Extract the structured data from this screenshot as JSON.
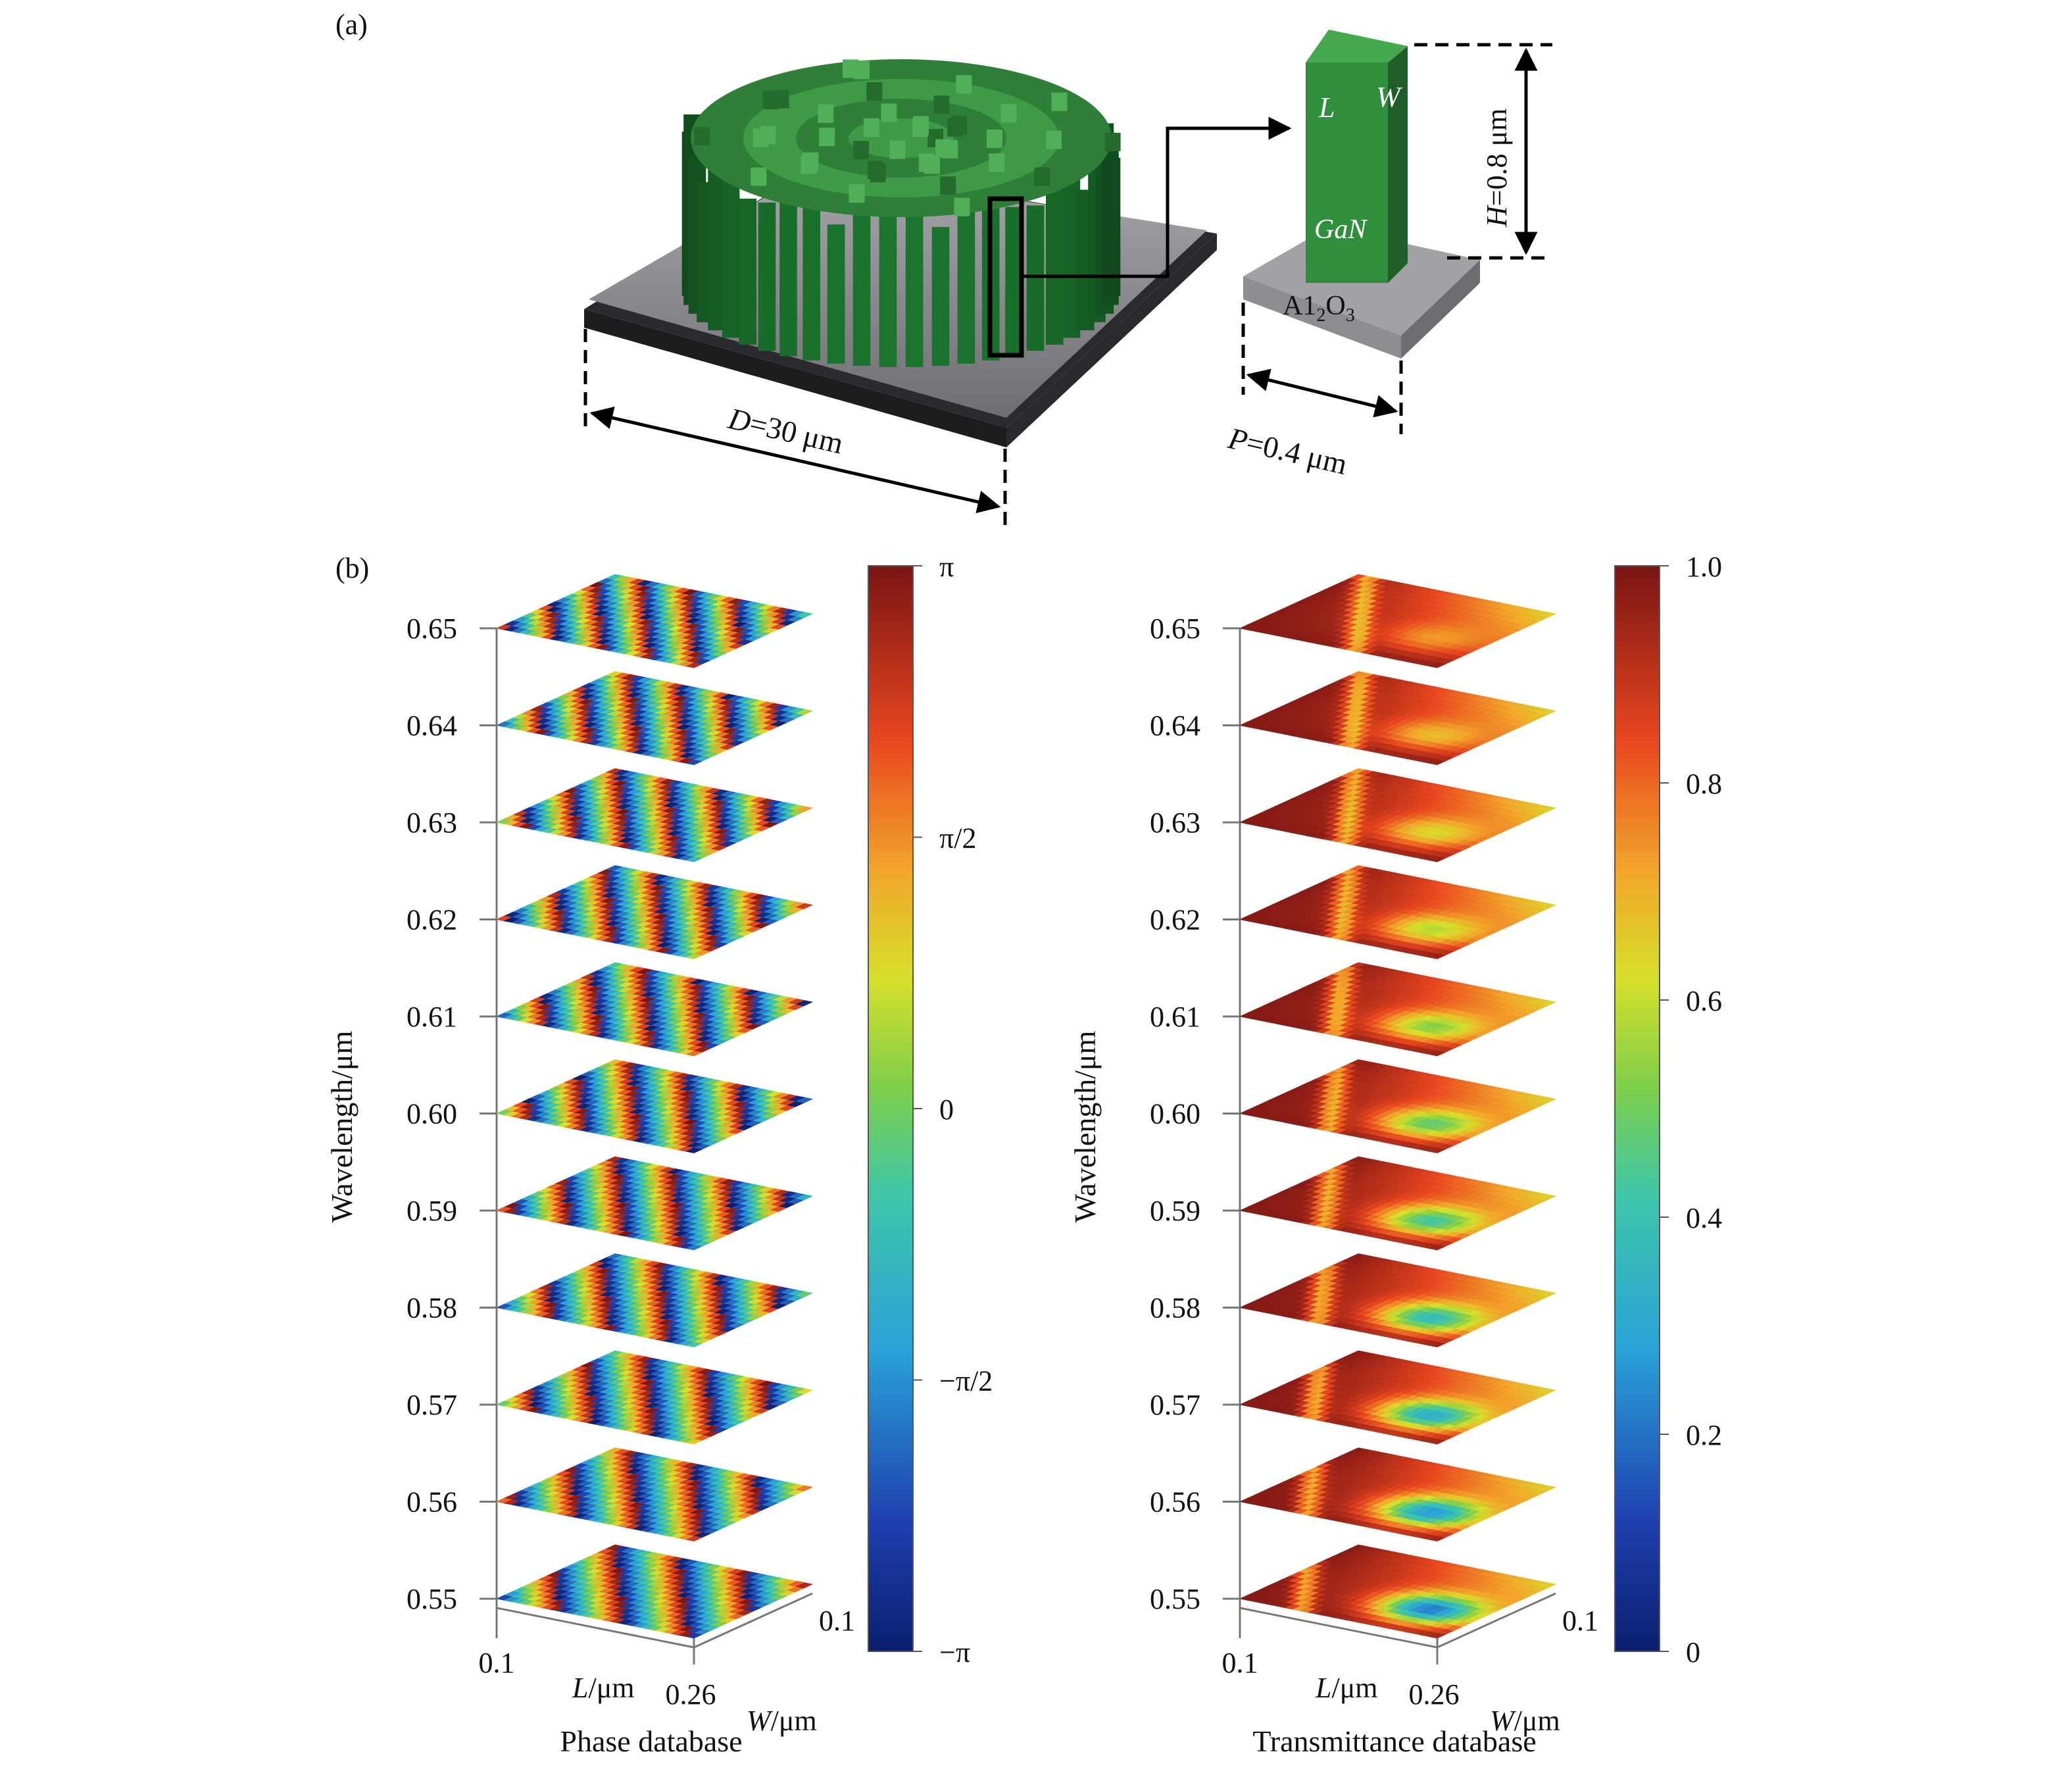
{
  "panel_a": {
    "label": "(a)",
    "substrate_label_main": "A1",
    "substrate_label_sub1": "2",
    "substrate_label_mid": "O",
    "substrate_label_sub2": "3",
    "pillar_L": "L",
    "pillar_W": "W",
    "pillar_material": "GaN",
    "height_label": "H=0.8 μm",
    "diameter_label": "D=30 μm",
    "period_label": "P=0.4 μm",
    "colors": {
      "pillar": "#2e7d3a",
      "pillar_top": "#49a552",
      "substrate": "#8c8c90",
      "substrate_edge": "#3a3a3e"
    }
  },
  "panel_b": {
    "label": "(b)",
    "charts": [
      {
        "name": "phase",
        "caption": "Phase database",
        "ylabel": "Wavelength/μm",
        "xlabel": "L/μm",
        "zlabel": "W/μm",
        "x_ticks": [
          "0.1",
          "0.26"
        ],
        "z_ticks": [
          "0.1"
        ],
        "colorbar_ticks": [
          "π",
          "π/2",
          "0",
          "−π/2",
          "−π"
        ],
        "colormap": "jet"
      },
      {
        "name": "transmittance",
        "caption": "Transmittance database",
        "ylabel": "Wavelength/μm",
        "xlabel": "L/μm",
        "zlabel": "W/μm",
        "x_ticks": [
          "0.1",
          "0.26"
        ],
        "z_ticks": [
          "0.1"
        ],
        "colorbar_ticks": [
          "1.0",
          "0.8",
          "0.6",
          "0.4",
          "0.2",
          "0"
        ],
        "colormap": "jet"
      }
    ]
  },
  "chart_data": [
    {
      "type": "heatmap",
      "title": "Phase database",
      "ylabel": "Wavelength/μm",
      "xlabel": "L/μm",
      "zlabel": "W/μm",
      "wavelengths": [
        0.55,
        0.56,
        0.57,
        0.58,
        0.59,
        0.6,
        0.61,
        0.62,
        0.63,
        0.64,
        0.65
      ],
      "L_range": [
        0.1,
        0.26
      ],
      "W_range": [
        0.1,
        0.26
      ],
      "color_range": [
        "−π",
        "π"
      ]
    },
    {
      "type": "heatmap",
      "title": "Transmittance database",
      "ylabel": "Wavelength/μm",
      "xlabel": "L/μm",
      "zlabel": "W/μm",
      "wavelengths": [
        0.55,
        0.56,
        0.57,
        0.58,
        0.59,
        0.6,
        0.61,
        0.62,
        0.63,
        0.64,
        0.65
      ],
      "L_range": [
        0.1,
        0.26
      ],
      "W_range": [
        0.1,
        0.26
      ],
      "color_range": [
        0,
        1.0
      ]
    }
  ]
}
